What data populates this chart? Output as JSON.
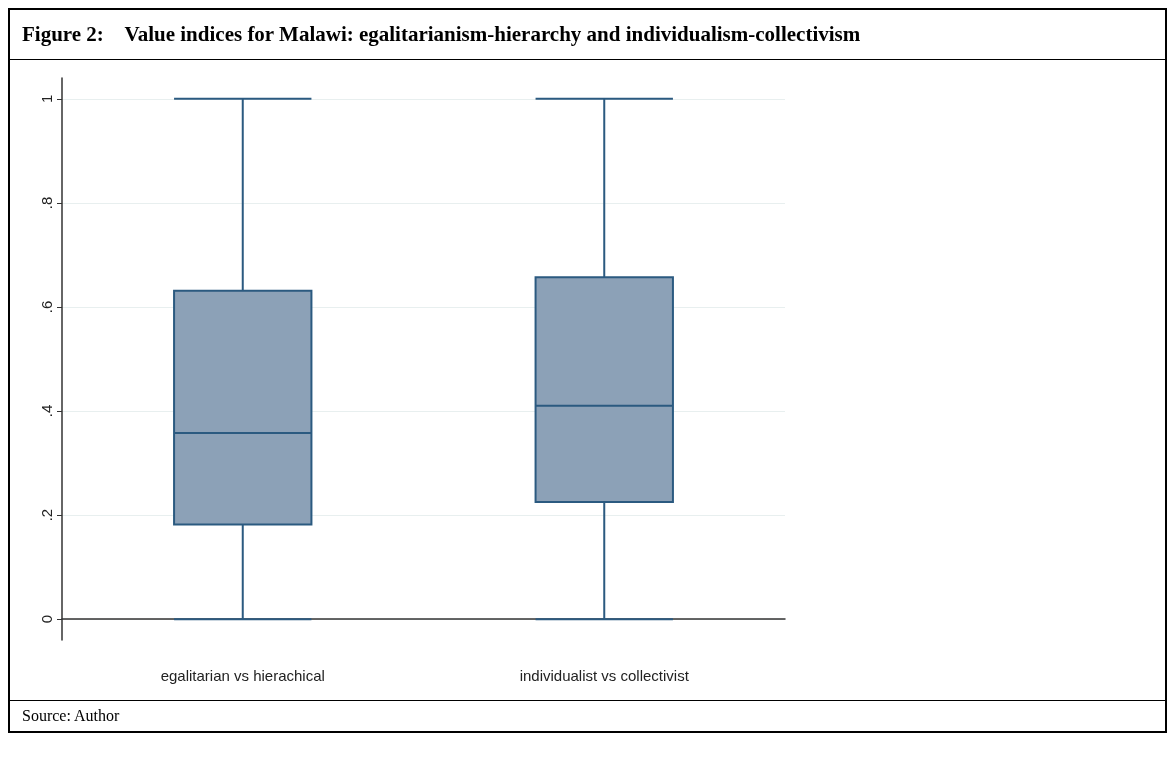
{
  "chart_data": {
    "type": "box",
    "title": "Figure 2:    Value indices for Malawi: egalitarianism-hierarchy and individualism-collectivism",
    "categories": [
      "egalitarian vs hierachical",
      "individualist vs collectivist"
    ],
    "color": "#8ca1b7",
    "boxes": [
      {
        "low": 0,
        "q1": 0.182,
        "median": 0.358,
        "q3": 0.631,
        "high": 1
      },
      {
        "low": 0,
        "q1": 0.225,
        "median": 0.41,
        "q3": 0.657,
        "high": 1
      }
    ],
    "ylim": [
      -0.04,
      1.04
    ],
    "yticks": [
      0,
      {
        "value": 0.2,
        "label": ".2"
      },
      {
        "value": 0.4,
        "label": ".4"
      },
      {
        "value": 0.6,
        "label": ".6"
      },
      {
        "value": 0.8,
        "label": ".8"
      },
      1
    ],
    "grid": "y",
    "annotations": [
      "Source: Author"
    ]
  }
}
